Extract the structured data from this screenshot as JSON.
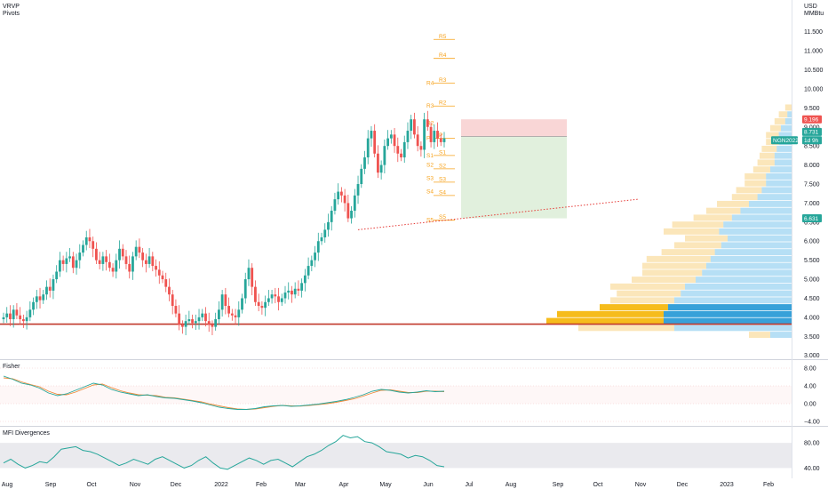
{
  "header": {
    "indicator_1": "VRVP",
    "indicator_2": "Pivots",
    "currency": "USD",
    "unit": "MMBtu"
  },
  "colors": {
    "up": "#26a69a",
    "down": "#ef5350",
    "support": "#c0392b",
    "pivot": "#f7a21b",
    "trend": "#e53935",
    "vp_up": "#5db8e8",
    "vp_down": "#f4b73a",
    "fisher_a": "#26a69a",
    "fisher_b": "#ef8a3a",
    "mfi": "#26a69a"
  },
  "chart_data": [
    {
      "type": "candlestick",
      "name": "main",
      "title": "",
      "x_ticks": [
        "Aug",
        "Sep",
        "Oct",
        "Nov",
        "Dec",
        "2022",
        "Feb",
        "Mar",
        "Apr",
        "May",
        "Jun",
        "Jul",
        "Aug",
        "Sep",
        "Oct",
        "Nov",
        "Dec",
        "2023",
        "Feb"
      ],
      "y_ticks": [
        "11.500",
        "11.000",
        "10.500",
        "10.000",
        "9.500",
        "9.000",
        "8.500",
        "8.000",
        "7.500",
        "7.000",
        "6.500",
        "6.000",
        "5.500",
        "5.000",
        "4.500",
        "4.000",
        "3.500",
        "3.000"
      ],
      "ylim": [
        2.9,
        11.75
      ],
      "closes": [
        4.0,
        4.1,
        3.95,
        4.2,
        4.05,
        3.95,
        3.9,
        4.0,
        4.2,
        4.4,
        4.55,
        4.45,
        4.6,
        4.8,
        4.7,
        5.0,
        5.2,
        5.5,
        5.4,
        5.55,
        5.6,
        5.3,
        5.5,
        5.7,
        5.9,
        6.1,
        6.0,
        5.8,
        5.5,
        5.4,
        5.6,
        5.45,
        5.3,
        5.2,
        5.5,
        5.8,
        5.6,
        5.4,
        5.2,
        5.6,
        5.85,
        5.7,
        5.5,
        5.4,
        5.6,
        5.35,
        5.25,
        5.1,
        5.0,
        4.8,
        4.6,
        4.3,
        4.1,
        3.8,
        3.75,
        3.9,
        3.95,
        3.85,
        3.9,
        4.0,
        4.1,
        3.9,
        3.8,
        3.75,
        3.95,
        4.2,
        4.6,
        4.3,
        4.1,
        4.05,
        4.0,
        4.2,
        4.5,
        5.0,
        5.3,
        4.8,
        4.4,
        4.3,
        4.25,
        4.4,
        4.5,
        4.6,
        4.55,
        4.4,
        4.5,
        4.65,
        4.7,
        4.6,
        4.75,
        4.7,
        4.9,
        5.1,
        5.35,
        5.5,
        5.7,
        6.0,
        6.1,
        6.3,
        6.5,
        6.8,
        7.1,
        7.3,
        7.2,
        7.0,
        6.6,
        6.8,
        7.2,
        7.5,
        7.9,
        8.2,
        8.7,
        8.9,
        8.3,
        7.8,
        8.0,
        8.5,
        8.7,
        8.8,
        8.5,
        8.3,
        8.2,
        8.6,
        8.9,
        9.2,
        8.8,
        8.5,
        8.4,
        9.2,
        9.0,
        8.6,
        8.9,
        8.7,
        8.6,
        8.7
      ],
      "pivots": {
        "labels_left": [
          "R4",
          "R3",
          "R2",
          "P",
          "S1",
          "S2",
          "S3",
          "S4",
          "S5"
        ],
        "labels_right": [
          "R5",
          "R4",
          "R3",
          "R2",
          "P",
          "S1",
          "S2",
          "S3",
          "S4",
          "S5"
        ],
        "levels_left": [
          10.15,
          9.55,
          9.1,
          8.7,
          8.25,
          8.0,
          7.65,
          7.3,
          6.55
        ],
        "levels_right": [
          11.3,
          10.8,
          10.15,
          9.55,
          8.7,
          8.25,
          7.9,
          7.55,
          7.2,
          6.55
        ]
      },
      "support_level": 3.82,
      "trendline": {
        "start_price": 6.3,
        "end_price": 7.1
      },
      "position": {
        "entry": 8.75,
        "stop": 9.2,
        "target": 6.6
      },
      "price_tags": [
        {
          "text": "9.196",
          "price": 9.2,
          "color": "#ef5350"
        },
        {
          "text": "8.731",
          "price": 8.87,
          "color": "#26a69a"
        },
        {
          "text": "1d 9h",
          "price": 8.65,
          "color": "#26a69a"
        },
        {
          "text": "NGN2022",
          "price": 8.65,
          "color": "#26a69a"
        },
        {
          "text": "6.631",
          "price": 6.6,
          "color": "#26a69a"
        }
      ],
      "volume_profile": {
        "up": [
          0.0,
          0.02,
          0.03,
          0.05,
          0.06,
          0.06,
          0.07,
          0.08,
          0.08,
          0.1,
          0.12,
          0.12,
          0.14,
          0.16,
          0.2,
          0.24,
          0.28,
          0.32,
          0.34,
          0.3,
          0.33,
          0.36,
          0.38,
          0.4,
          0.42,
          0.45,
          0.5,
          0.52,
          0.55,
          0.58,
          0.6,
          0.6,
          0.55,
          0.1
        ],
        "down": [
          0.03,
          0.04,
          0.05,
          0.05,
          0.06,
          0.06,
          0.07,
          0.07,
          0.08,
          0.08,
          0.1,
          0.1,
          0.12,
          0.12,
          0.15,
          0.16,
          0.18,
          0.24,
          0.26,
          0.2,
          0.22,
          0.25,
          0.3,
          0.3,
          0.28,
          0.3,
          0.35,
          0.3,
          0.3,
          0.32,
          0.5,
          0.55,
          0.45,
          0.1
        ]
      }
    },
    {
      "type": "line",
      "name": "fisher",
      "title": "Fisher",
      "y_ticks": [
        "8.00",
        "4.00",
        "0.00",
        "−4.00"
      ],
      "ylim": [
        -4.8,
        9.0
      ],
      "series_a": [
        6.2,
        5.5,
        4.6,
        4.2,
        3.5,
        2.4,
        1.8,
        2.2,
        3.0,
        3.8,
        4.6,
        4.2,
        3.2,
        2.6,
        2.2,
        1.8,
        2.0,
        1.6,
        1.3,
        1.2,
        0.9,
        0.6,
        0.2,
        -0.3,
        -0.8,
        -1.1,
        -1.3,
        -1.3,
        -1.1,
        -0.7,
        -0.5,
        -0.4,
        -0.6,
        -0.5,
        -0.3,
        -0.1,
        0.2,
        0.5,
        0.9,
        1.4,
        2.0,
        2.8,
        3.2,
        3.0,
        2.6,
        2.4,
        2.6,
        2.9,
        2.7,
        2.8
      ],
      "series_b": [
        5.8,
        5.6,
        4.9,
        4.3,
        3.8,
        2.8,
        2.1,
        2.0,
        2.6,
        3.4,
        4.2,
        4.4,
        3.6,
        2.9,
        2.4,
        2.0,
        1.9,
        1.8,
        1.4,
        1.3,
        1.0,
        0.7,
        0.4,
        -0.1,
        -0.5,
        -0.9,
        -1.2,
        -1.3,
        -1.2,
        -0.9,
        -0.6,
        -0.4,
        -0.5,
        -0.55,
        -0.4,
        -0.2,
        0.0,
        0.3,
        0.7,
        1.1,
        1.7,
        2.4,
        3.0,
        3.1,
        2.8,
        2.5,
        2.5,
        2.8,
        2.8,
        2.7
      ]
    },
    {
      "type": "line",
      "name": "mfi",
      "title": "MFI Divergences",
      "y_ticks": [
        "80.00",
        "40.00"
      ],
      "ylim": [
        25,
        100
      ],
      "band": [
        40,
        80
      ],
      "values": [
        48,
        54,
        46,
        40,
        44,
        50,
        48,
        58,
        70,
        72,
        74,
        68,
        66,
        62,
        56,
        50,
        44,
        48,
        54,
        50,
        46,
        54,
        58,
        52,
        46,
        40,
        44,
        52,
        58,
        48,
        40,
        38,
        44,
        50,
        56,
        52,
        46,
        52,
        54,
        48,
        42,
        50,
        58,
        62,
        68,
        76,
        82,
        92,
        88,
        90,
        82,
        80,
        74,
        66,
        64,
        62,
        56,
        60,
        58,
        52,
        44,
        42
      ]
    }
  ]
}
